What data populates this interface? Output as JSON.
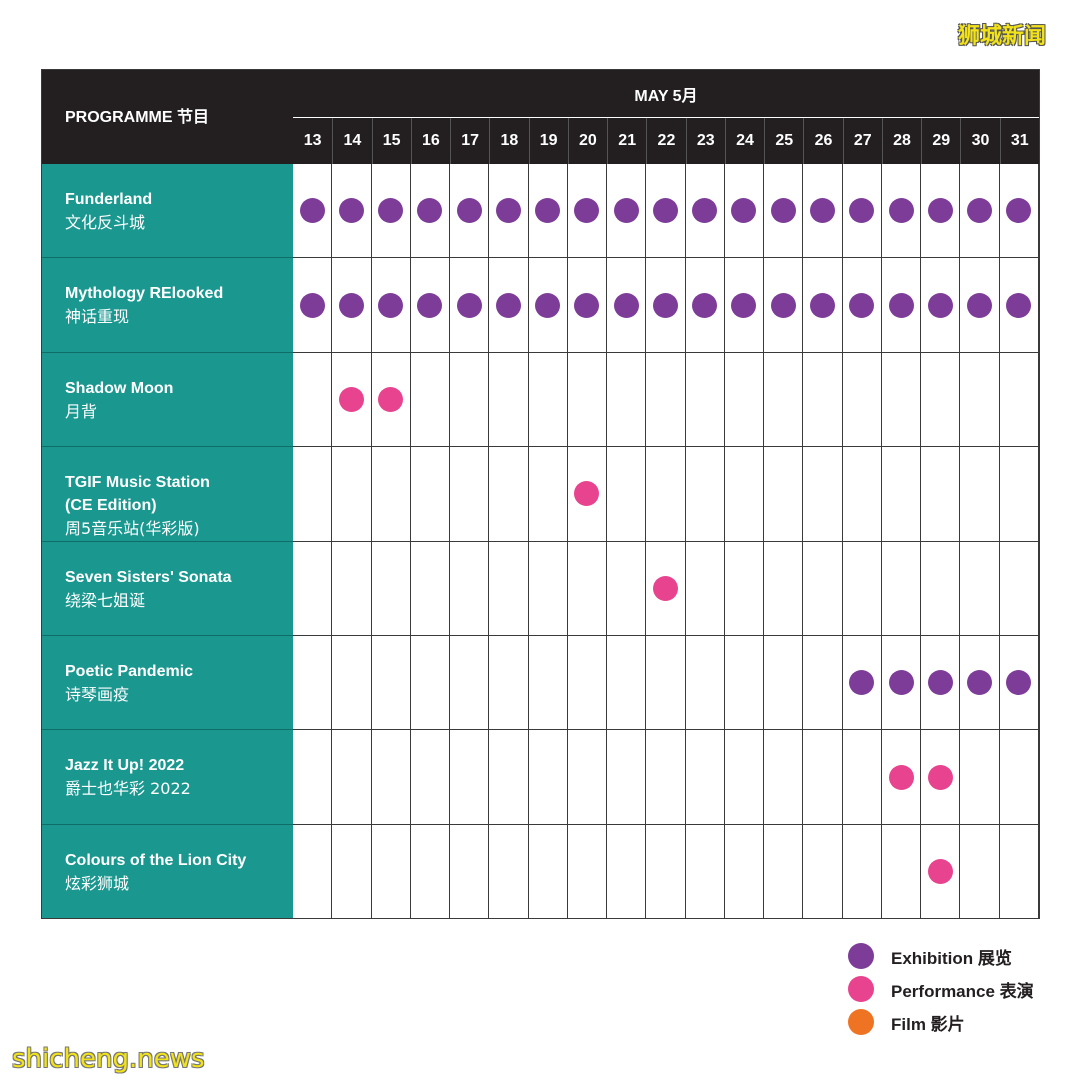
{
  "watermarks": {
    "top": "狮城新闻",
    "bottom": "shicheng.news"
  },
  "header": {
    "programme_label": "PROGRAMME 节目",
    "month_label": "MAY 5月"
  },
  "days": [
    "13",
    "14",
    "15",
    "16",
    "17",
    "18",
    "19",
    "20",
    "21",
    "22",
    "23",
    "24",
    "25",
    "26",
    "27",
    "28",
    "29",
    "30",
    "31"
  ],
  "colors": {
    "exhibition": "#7d3c98",
    "performance": "#e8438f",
    "film": "#ee7424",
    "programme_bg": "#1a978f",
    "header_bg": "#231f20"
  },
  "programmes": [
    {
      "name_en": "Funderland",
      "name_zh": "文化反斗城",
      "type": "exhibition",
      "days": [
        "13",
        "14",
        "15",
        "16",
        "17",
        "18",
        "19",
        "20",
        "21",
        "22",
        "23",
        "24",
        "25",
        "26",
        "27",
        "28",
        "29",
        "30",
        "31"
      ]
    },
    {
      "name_en": "Mythology RElooked",
      "name_zh": "神话重现",
      "type": "exhibition",
      "days": [
        "13",
        "14",
        "15",
        "16",
        "17",
        "18",
        "19",
        "20",
        "21",
        "22",
        "23",
        "24",
        "25",
        "26",
        "27",
        "28",
        "29",
        "30",
        "31"
      ]
    },
    {
      "name_en": "Shadow Moon",
      "name_zh": "月背",
      "type": "performance",
      "days": [
        "14",
        "15"
      ]
    },
    {
      "name_en": "TGIF Music Station\n(CE Edition)",
      "name_zh": "周5音乐站(华彩版)",
      "type": "performance",
      "days": [
        "20"
      ]
    },
    {
      "name_en": "Seven Sisters' Sonata",
      "name_zh": "绕梁七姐诞",
      "type": "performance",
      "days": [
        "22"
      ]
    },
    {
      "name_en": "Poetic Pandemic",
      "name_zh": "诗琴画疫",
      "type": "exhibition",
      "days": [
        "27",
        "28",
        "29",
        "30",
        "31"
      ]
    },
    {
      "name_en": "Jazz It Up! 2022",
      "name_zh": "爵士也华彩 2022",
      "type": "performance",
      "days": [
        "28",
        "29"
      ]
    },
    {
      "name_en": "Colours of the Lion City",
      "name_zh": "炫彩狮城",
      "type": "performance",
      "days": [
        "29"
      ]
    }
  ],
  "legend": [
    {
      "type": "exhibition",
      "label": "Exhibition 展览"
    },
    {
      "type": "performance",
      "label": "Performance 表演"
    },
    {
      "type": "film",
      "label": "Film 影片"
    }
  ]
}
